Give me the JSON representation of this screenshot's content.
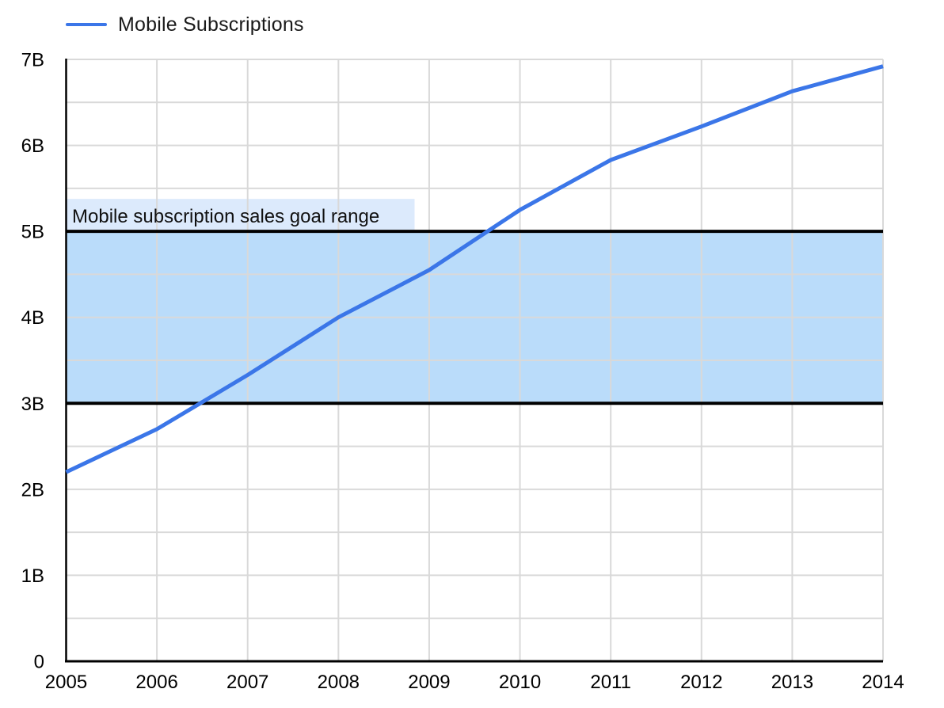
{
  "legend": {
    "series_label": "Mobile Subscriptions"
  },
  "annotation": {
    "goal_range_label": "Mobile subscription sales goal range"
  },
  "colors": {
    "line": "#3B76E8",
    "band_fill": "#BADCFA",
    "label_bg": "#DCEAFC",
    "gridline": "#D9D9D9",
    "bound_line": "#000000",
    "axis": "#000000",
    "tick_text": "#000000",
    "annotation_text": "#111111"
  },
  "chart_data": {
    "type": "line",
    "title": "",
    "xlabel": "",
    "ylabel": "",
    "x": [
      2005,
      2006,
      2007,
      2008,
      2009,
      2010,
      2011,
      2012,
      2013,
      2014
    ],
    "x_tick_labels": [
      "2005",
      "2006",
      "2007",
      "2008",
      "2009",
      "2010",
      "2011",
      "2012",
      "2013",
      "2014"
    ],
    "series": [
      {
        "name": "Mobile Subscriptions",
        "values": [
          2.2,
          2.7,
          3.33,
          4.0,
          4.55,
          5.25,
          5.83,
          6.22,
          6.63,
          6.92
        ]
      }
    ],
    "ylim": [
      0,
      7
    ],
    "y_major_step": 1,
    "y_minor_step": 0.5,
    "y_tick_labels": [
      "0",
      "1B",
      "2B",
      "3B",
      "4B",
      "5B",
      "6B",
      "7B"
    ],
    "goal_range": {
      "min": 3,
      "max": 5,
      "label": "Mobile subscription sales goal range"
    },
    "grid": true,
    "legend_position": "top-left"
  }
}
